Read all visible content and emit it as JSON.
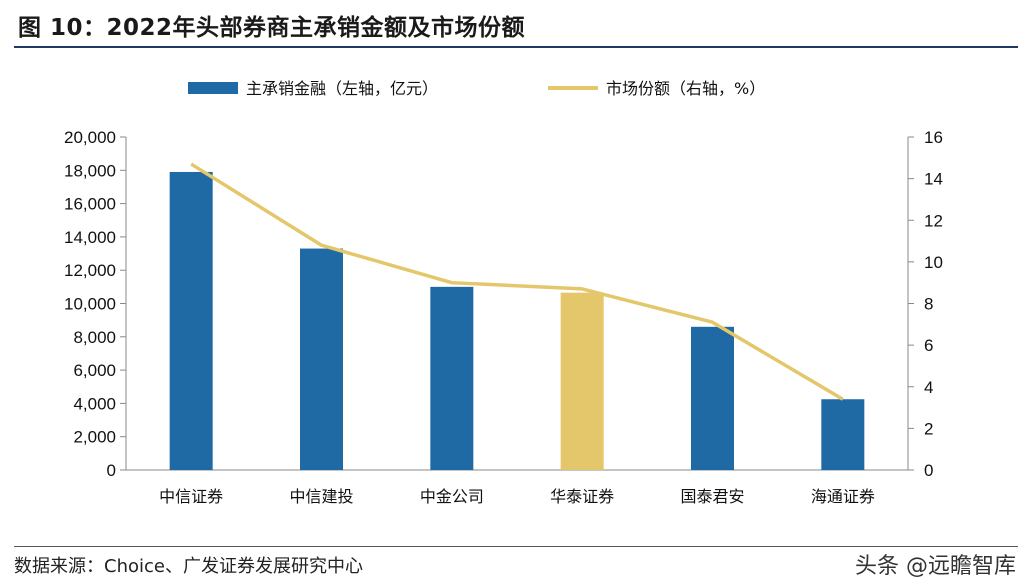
{
  "figure": {
    "title": "图 10：2022年头部券商主承销金额及市场份额",
    "source": "数据来源：Choice、广发证券发展研究中心",
    "watermark": "头条 @远瞻智库"
  },
  "chart_data": {
    "type": "bar",
    "categories": [
      "中信证券",
      "中信建投",
      "中金公司",
      "华泰证券",
      "国泰君安",
      "海通证券"
    ],
    "series": [
      {
        "name": "主承销金融（左轴，亿元）",
        "type": "bar",
        "axis": "left",
        "values": [
          17900,
          13300,
          11000,
          10650,
          8600,
          4250
        ],
        "color": "#1f6aa5",
        "highlight_index": 3,
        "highlight_color": "#e3c76a"
      },
      {
        "name": "市场份额（右轴，%）",
        "type": "line",
        "axis": "right",
        "values": [
          14.7,
          10.8,
          9.0,
          8.7,
          7.1,
          3.4
        ],
        "color": "#e3c76a"
      }
    ],
    "y_left": {
      "lim": [
        0,
        20000
      ],
      "ticks": [
        "0",
        "2,000",
        "4,000",
        "6,000",
        "8,000",
        "10,000",
        "12,000",
        "14,000",
        "16,000",
        "18,000",
        "20,000"
      ]
    },
    "y_right": {
      "lim": [
        0,
        16
      ],
      "ticks": [
        "0",
        "2",
        "4",
        "6",
        "8",
        "10",
        "12",
        "14",
        "16"
      ]
    },
    "grid": false,
    "legend": "top-center"
  }
}
